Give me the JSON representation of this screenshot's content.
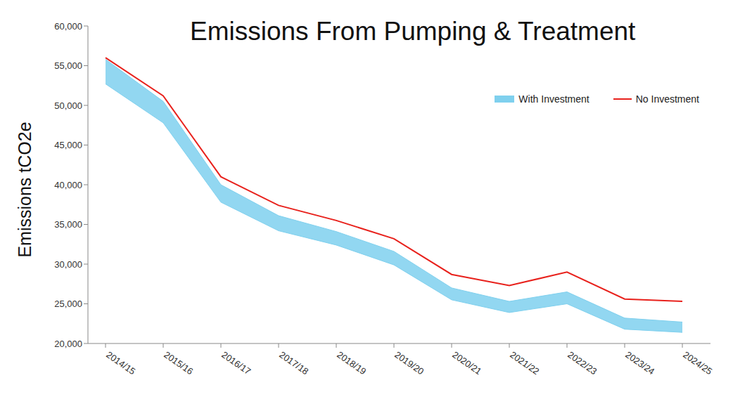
{
  "chart_data": {
    "type": "line",
    "title": "Emissions From Pumping & Treatment",
    "y_label": "Emissions tCO2e",
    "categories": [
      "2014/15",
      "2015/16",
      "2016/17",
      "2017/18",
      "2018/19",
      "2019/20",
      "2020/21",
      "2021/22",
      "2022/23",
      "2023/24",
      "2024/25"
    ],
    "series": [
      {
        "name": "With Investment",
        "type": "range",
        "color": "#7fd0ee",
        "values": [
          [
            52700,
            55800
          ],
          [
            47800,
            50500
          ],
          [
            37800,
            40000
          ],
          [
            34200,
            36100
          ],
          [
            32400,
            34100
          ],
          [
            29900,
            31600
          ],
          [
            25500,
            27000
          ],
          [
            23900,
            25300
          ],
          [
            25000,
            26500
          ],
          [
            21800,
            23200
          ],
          [
            21400,
            22700
          ]
        ]
      },
      {
        "name": "No Investment",
        "type": "line",
        "color": "#e8211c",
        "marker": "none",
        "values": [
          56000,
          51200,
          41000,
          37400,
          35500,
          33200,
          28700,
          27300,
          29000,
          25600,
          25300
        ]
      }
    ],
    "ylim": [
      20000,
      60000
    ],
    "yticks": [
      {
        "value": 20000,
        "label": "20,000"
      },
      {
        "value": 25000,
        "label": "25,000"
      },
      {
        "value": 30000,
        "label": "30,000"
      },
      {
        "value": 35000,
        "label": "35,000"
      },
      {
        "value": 40000,
        "label": "40,000"
      },
      {
        "value": 45000,
        "label": "45,000"
      },
      {
        "value": 50000,
        "label": "50,000"
      },
      {
        "value": 55000,
        "label": "55,000"
      },
      {
        "value": 60000,
        "label": "60,000"
      }
    ],
    "grid": false,
    "legend": "upper right"
  }
}
